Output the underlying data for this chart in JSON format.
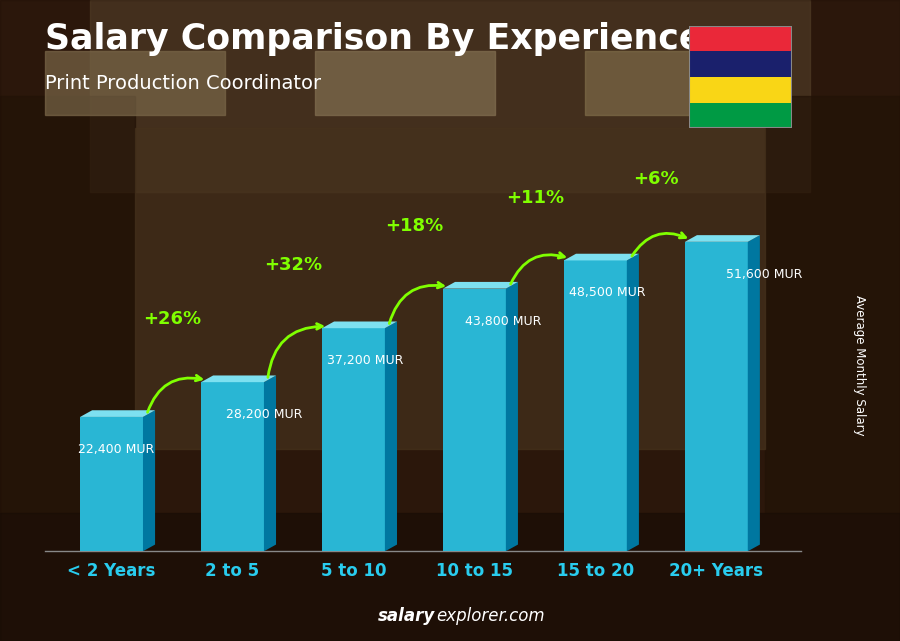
{
  "title": "Salary Comparison By Experience",
  "subtitle": "Print Production Coordinator",
  "categories": [
    "< 2 Years",
    "2 to 5",
    "5 to 10",
    "10 to 15",
    "15 to 20",
    "20+ Years"
  ],
  "values": [
    22400,
    28200,
    37200,
    43800,
    48500,
    51600
  ],
  "value_labels": [
    "22,400 MUR",
    "28,200 MUR",
    "37,200 MUR",
    "43,800 MUR",
    "48,500 MUR",
    "51,600 MUR"
  ],
  "pct_labels": [
    "+26%",
    "+32%",
    "+18%",
    "+11%",
    "+6%"
  ],
  "bar_color_face": "#29b6d4",
  "bar_color_dark": "#0077a0",
  "bar_color_top": "#7de0f0",
  "ylabel": "Average Monthly Salary",
  "footer_bold": "salary",
  "footer_regular": "explorer.com",
  "title_color": "#ffffff",
  "subtitle_color": "#ffffff",
  "value_label_color": "#ffffff",
  "pct_color": "#80ff00",
  "xticklabel_color": "#29ccee",
  "ylim": [
    0,
    62000
  ],
  "flag_colors": [
    "#ea2839",
    "#1a206c",
    "#f9d616",
    "#009a44"
  ],
  "background_color": "#3a2010"
}
